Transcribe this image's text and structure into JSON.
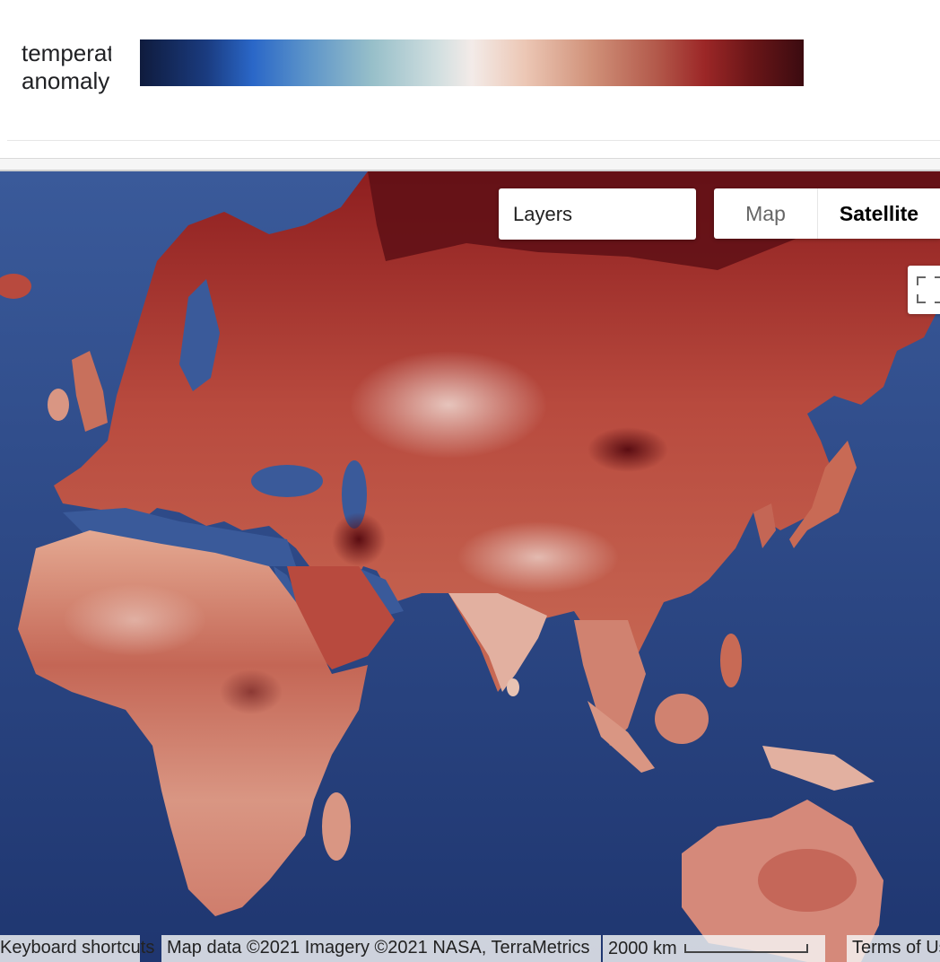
{
  "legend": {
    "label_line1": "temperature",
    "label_line2": "anomaly",
    "colors": [
      "#0f1b3d",
      "#2a67c8",
      "#97bfc9",
      "#f3ebe8",
      "#d09179",
      "#9c2727",
      "#3b0b10"
    ]
  },
  "map": {
    "controls": {
      "layers_label": "Layers",
      "map_type_options": [
        "Map",
        "Satellite"
      ],
      "selected_map_type": "Satellite",
      "fullscreen_icon": "fullscreen-icon"
    },
    "ocean_color": "#2b4a8a",
    "anomaly_hot_color": "#9c2727",
    "anomaly_mild_color": "#e3b09c"
  },
  "attribution": {
    "keyboard_shortcuts": "Keyboard shortcuts",
    "map_data": "Map data ©2021 Imagery ©2021 NASA, TerraMetrics",
    "scale_label": "2000 km",
    "terms": "Terms of Use"
  }
}
